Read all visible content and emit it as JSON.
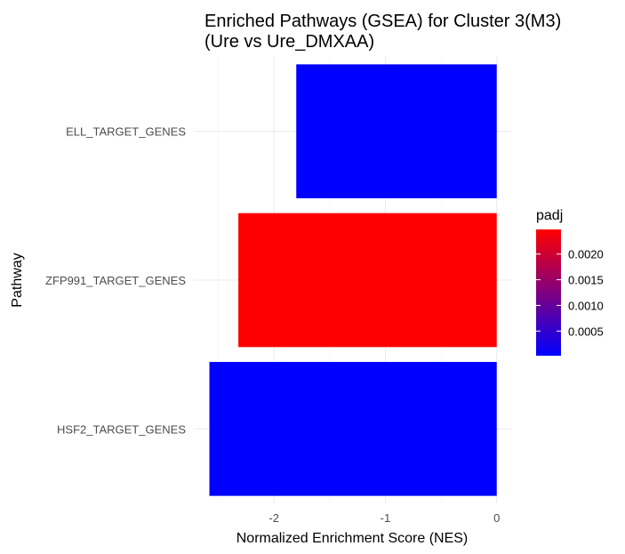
{
  "chart_data": {
    "type": "bar",
    "orientation": "horizontal",
    "title": "Enriched Pathways (GSEA) for Cluster 3(M3)",
    "subtitle": "(Ure vs Ure_DMXAA)",
    "xlabel": "Normalized Enrichment Score (NES)",
    "ylabel": "Pathway",
    "categories": [
      "HSF2_TARGET_GENES",
      "ZFP991_TARGET_GENES",
      "ELL_TARGET_GENES"
    ],
    "values": [
      -2.58,
      -2.32,
      -1.8
    ],
    "padj": [
      2e-05,
      0.00248,
      2e-05
    ],
    "x_ticks": [
      -2,
      -1,
      0
    ],
    "x_tick_labels": [
      "-2",
      "-1",
      "0"
    ],
    "xlim": [
      -2.72,
      0.13
    ],
    "grid": true,
    "legend": {
      "title": "padj",
      "placement": "right",
      "low_color": "#0000ff",
      "high_color": "#ff0000",
      "range": [
        2e-05,
        0.00248
      ],
      "ticks": [
        0.0005,
        0.001,
        0.0015,
        0.002
      ],
      "tick_labels": [
        "0.0005",
        "0.0010",
        "0.0015",
        "0.0020"
      ]
    }
  }
}
